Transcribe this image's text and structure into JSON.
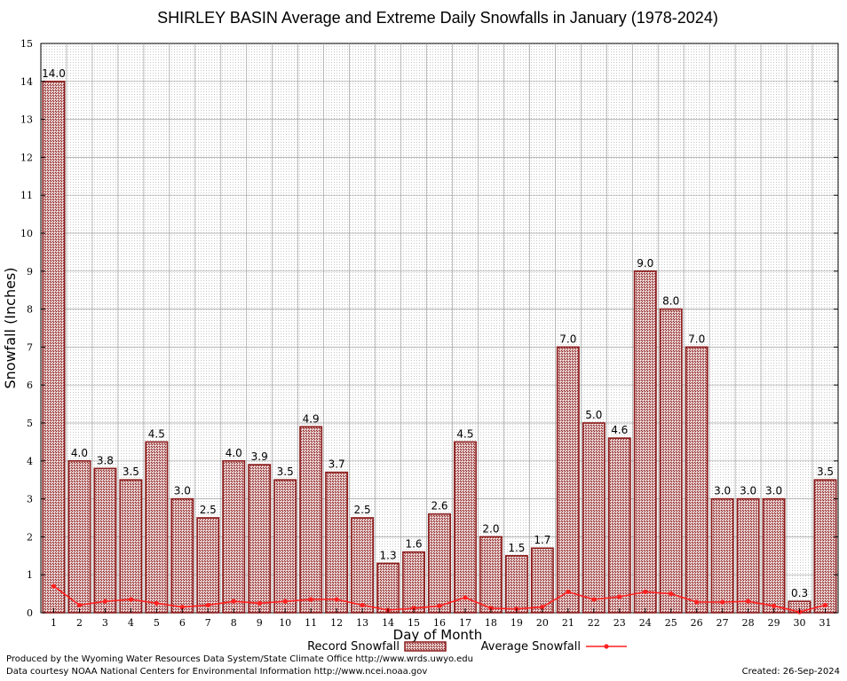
{
  "chart_data": {
    "type": "bar",
    "title": "SHIRLEY BASIN Average and Extreme Daily Snowfalls in January (1978-2024)",
    "xlabel": "Day of Month",
    "ylabel": "Snowfall (Inches)",
    "ylim": [
      0,
      15
    ],
    "yticks": [
      "0",
      "1",
      "2",
      "3",
      "4",
      "5",
      "6",
      "7",
      "8",
      "9",
      "10",
      "11",
      "12",
      "13",
      "14",
      "15"
    ],
    "categories": [
      "1",
      "2",
      "3",
      "4",
      "5",
      "6",
      "7",
      "8",
      "9",
      "10",
      "11",
      "12",
      "13",
      "14",
      "15",
      "16",
      "17",
      "18",
      "19",
      "20",
      "21",
      "22",
      "23",
      "24",
      "25",
      "26",
      "27",
      "28",
      "29",
      "30",
      "31"
    ],
    "series": [
      {
        "name": "Record Snowfall",
        "kind": "bar",
        "color": "#8b1a1a",
        "values": [
          14.0,
          4.0,
          3.8,
          3.5,
          4.5,
          3.0,
          2.5,
          4.0,
          3.9,
          3.5,
          4.9,
          3.7,
          2.5,
          1.3,
          1.6,
          2.6,
          4.5,
          2.0,
          1.5,
          1.7,
          7.0,
          5.0,
          4.6,
          9.0,
          8.0,
          7.0,
          3.0,
          3.0,
          3.0,
          0.3,
          3.5
        ],
        "labels": [
          "14.0",
          "4.0",
          "3.8",
          "3.5",
          "4.5",
          "3.0",
          "2.5",
          "4.0",
          "3.9",
          "3.5",
          "4.9",
          "3.7",
          "2.5",
          "1.3",
          "1.6",
          "2.6",
          "4.5",
          "2.0",
          "1.5",
          "1.7",
          "7.0",
          "5.0",
          "4.6",
          "9.0",
          "8.0",
          "7.0",
          "3.0",
          "3.0",
          "3.0",
          "0.3",
          "3.5"
        ]
      },
      {
        "name": "Average Snowfall",
        "kind": "line",
        "color": "#ff2020",
        "values": [
          0.7,
          0.2,
          0.3,
          0.35,
          0.25,
          0.15,
          0.2,
          0.3,
          0.25,
          0.3,
          0.35,
          0.35,
          0.2,
          0.07,
          0.12,
          0.18,
          0.4,
          0.12,
          0.1,
          0.15,
          0.55,
          0.35,
          0.42,
          0.55,
          0.5,
          0.28,
          0.28,
          0.3,
          0.18,
          0.02,
          0.2
        ]
      }
    ],
    "grid": true,
    "legend": "bottom-center"
  },
  "footer": {
    "producer": "Produced by the Wyoming Water Resources Data System/State Climate Office http://www.wrds.uwyo.edu",
    "courtesy": "Data courtesy NOAA National Centers for Environmental Information http://www.ncei.noaa.gov",
    "created": "Created:  26-Sep-2024"
  }
}
